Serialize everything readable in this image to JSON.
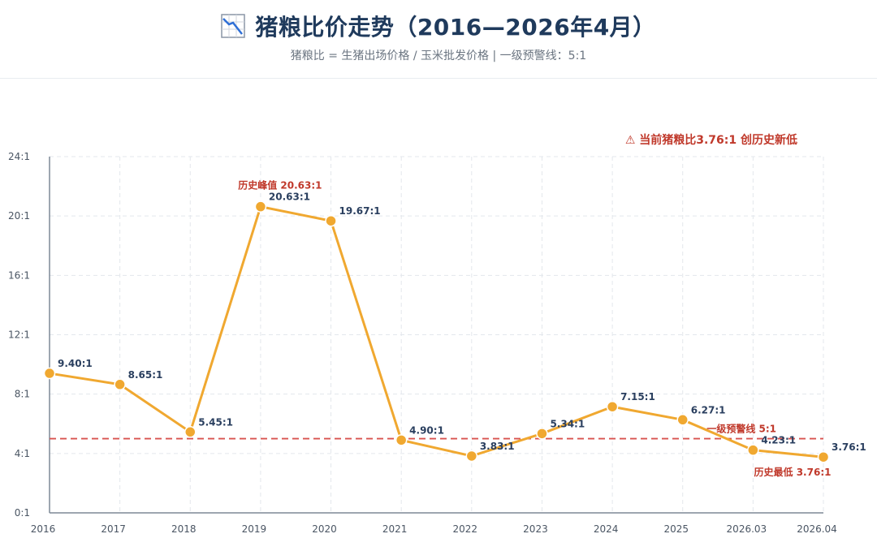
{
  "header": {
    "title": "猪粮比价走势（2016—2026年4月）",
    "subtitle": "猪粮比 = 生猪出场价格 / 玉米批发价格 | 一级预警线：5:1",
    "icon": "chart-decreasing-icon"
  },
  "chart_data": {
    "type": "line",
    "categories": [
      "2016",
      "2017",
      "2018",
      "2019",
      "2020",
      "2021",
      "2022",
      "2023",
      "2024",
      "2025",
      "2026.03",
      "2026.04"
    ],
    "values": [
      9.4,
      8.65,
      5.45,
      20.63,
      19.67,
      4.9,
      3.83,
      5.34,
      7.15,
      6.27,
      4.23,
      3.76
    ],
    "value_labels": [
      "9.40:1",
      "8.65:1",
      "5.45:1",
      "20.63:1",
      "19.67:1",
      "4.90:1",
      "3.83:1",
      "5.34:1",
      "7.15:1",
      "6.27:1",
      "4.23:1",
      "3.76:1"
    ],
    "ylim": [
      0,
      24
    ],
    "yticks": [
      0,
      4,
      8,
      12,
      16,
      20,
      24
    ],
    "ytick_labels": [
      "0:1",
      "4:1",
      "8:1",
      "12:1",
      "16:1",
      "20:1",
      "24:1"
    ],
    "grid": true,
    "line_color": "#f0a830",
    "warning_line": {
      "value": 5,
      "label": "一级预警线 5:1",
      "color": "#d9534f"
    },
    "annotations": {
      "peak": {
        "index": 3,
        "text": "历史峰值 20.63:1"
      },
      "low": {
        "index": 11,
        "text": "历史最低 3.76:1"
      },
      "alert": {
        "text": "⚠ 当前猪粮比3.76:1 创历史新低"
      }
    }
  }
}
